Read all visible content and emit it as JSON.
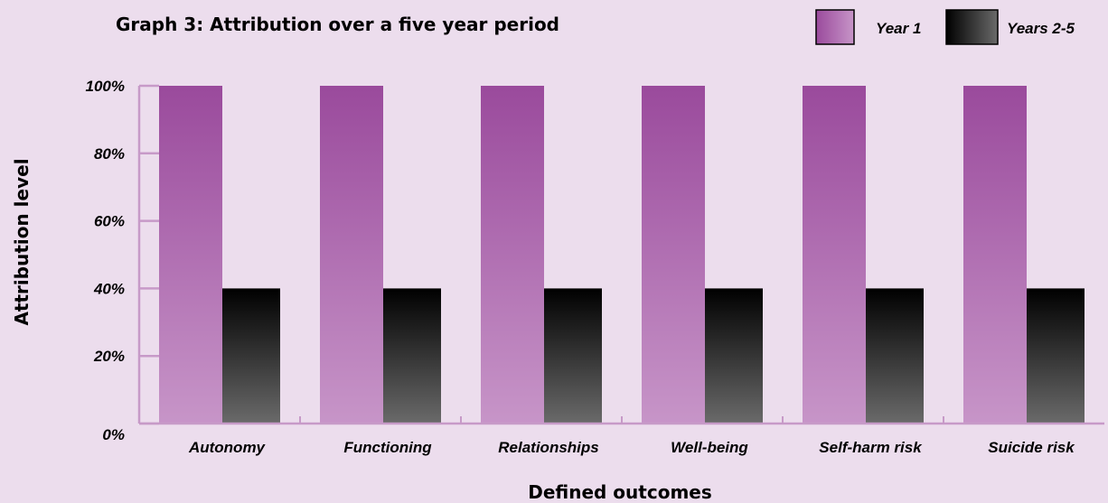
{
  "chart_data": {
    "type": "bar",
    "title": "Graph 3: Attribution over a five year period",
    "xlabel": "Defined outcomes",
    "ylabel": "Attribution level",
    "categories": [
      "Autonomy",
      "Functioning",
      "Relationships",
      "Well-being",
      "Self-harm risk",
      "Suicide risk"
    ],
    "series": [
      {
        "name": "Year 1",
        "values": [
          100,
          100,
          100,
          100,
          100,
          100
        ],
        "color_top": "#9a4a9c",
        "color_bottom": "#c795c8"
      },
      {
        "name": "Years 2-5",
        "values": [
          40,
          40,
          40,
          40,
          40,
          40
        ],
        "color_top": "#000000",
        "color_bottom": "#6a6a6a"
      }
    ],
    "ylim": [
      0,
      100
    ],
    "yticks": [
      0,
      20,
      40,
      60,
      80,
      100
    ],
    "ytick_labels": [
      "0%",
      "20%",
      "40%",
      "60%",
      "80%",
      "100%"
    ],
    "legend_position": "top-right",
    "grid": false,
    "axis_color": "#c79ac8"
  }
}
